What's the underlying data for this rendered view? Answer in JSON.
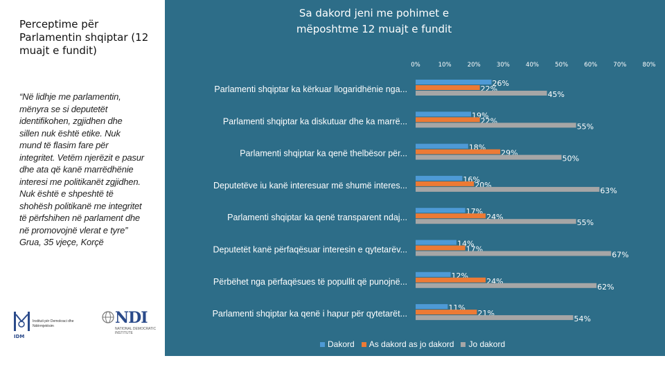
{
  "sidebar": {
    "title": "Perceptime për Parlamentin shqiptar (12 muajt e fundit)",
    "quote": "“Në lidhje me parlamentin, mënyra se si deputetët identifikohen, zgjidhen dhe sillen nuk është etike. Nuk mund të flasim fare për integritet. Vetëm njerëzit e pasur dhe ata që kanë marrëdhënie interesi me politikanët zgjidhen. Nuk është e shpeshtë të shohësh politikanë me integritet të përfshihen në parlament dhe në promovojnë vlerat e tyre” Grua, 35 vjeçe, Korçë",
    "logo_idm": "IDM",
    "logo_idm_text": "Instituti për Demokraci dhe Ndërmjetësim",
    "logo_ndi": "NDI",
    "logo_ndi_text": "NATIONAL DEMOCRATIC INSTITUTE"
  },
  "colors": {
    "panel": "#2d6d88",
    "dakord": "#4e9ad6",
    "as": "#ec7a35",
    "jo": "#a6a6a6"
  },
  "chart_data": {
    "type": "bar",
    "orientation": "horizontal",
    "title": "Sa dakord jeni me pohimet e mëposhtme 12 muajt e fundit",
    "xlim": [
      0,
      80
    ],
    "xticks": [
      "0%",
      "10%",
      "20%",
      "30%",
      "40%",
      "50%",
      "60%",
      "70%",
      "80%"
    ],
    "categories": [
      "Parlamenti shqiptar ka kërkuar llogaridhënie nga...",
      "Parlamenti shqiptar ka diskutuar dhe ka marrë...",
      "Parlamenti shqiptar ka qenë thelbësor për...",
      "Deputetëve iu kanë interesuar më shumë interes...",
      "Parlamenti shqiptar ka qenë transparent ndaj...",
      "Deputetët kanë përfaqësuar interesin e qytetarëv...",
      "Përbëhet nga përfaqësues të popullit që punojnë...",
      "Parlamenti shqiptar ka qenë i hapur për qytetarët..."
    ],
    "series": [
      {
        "name": "Dakord",
        "values": [
          26,
          19,
          18,
          16,
          17,
          14,
          12,
          11
        ]
      },
      {
        "name": "As dakord as jo dakord",
        "values": [
          22,
          22,
          29,
          20,
          24,
          17,
          24,
          21
        ]
      },
      {
        "name": "Jo dakord",
        "values": [
          45,
          55,
          50,
          63,
          55,
          67,
          62,
          54
        ]
      }
    ],
    "legend": [
      "Dakord",
      "As dakord as jo dakord",
      "Jo dakord"
    ],
    "legend_position": "bottom"
  }
}
